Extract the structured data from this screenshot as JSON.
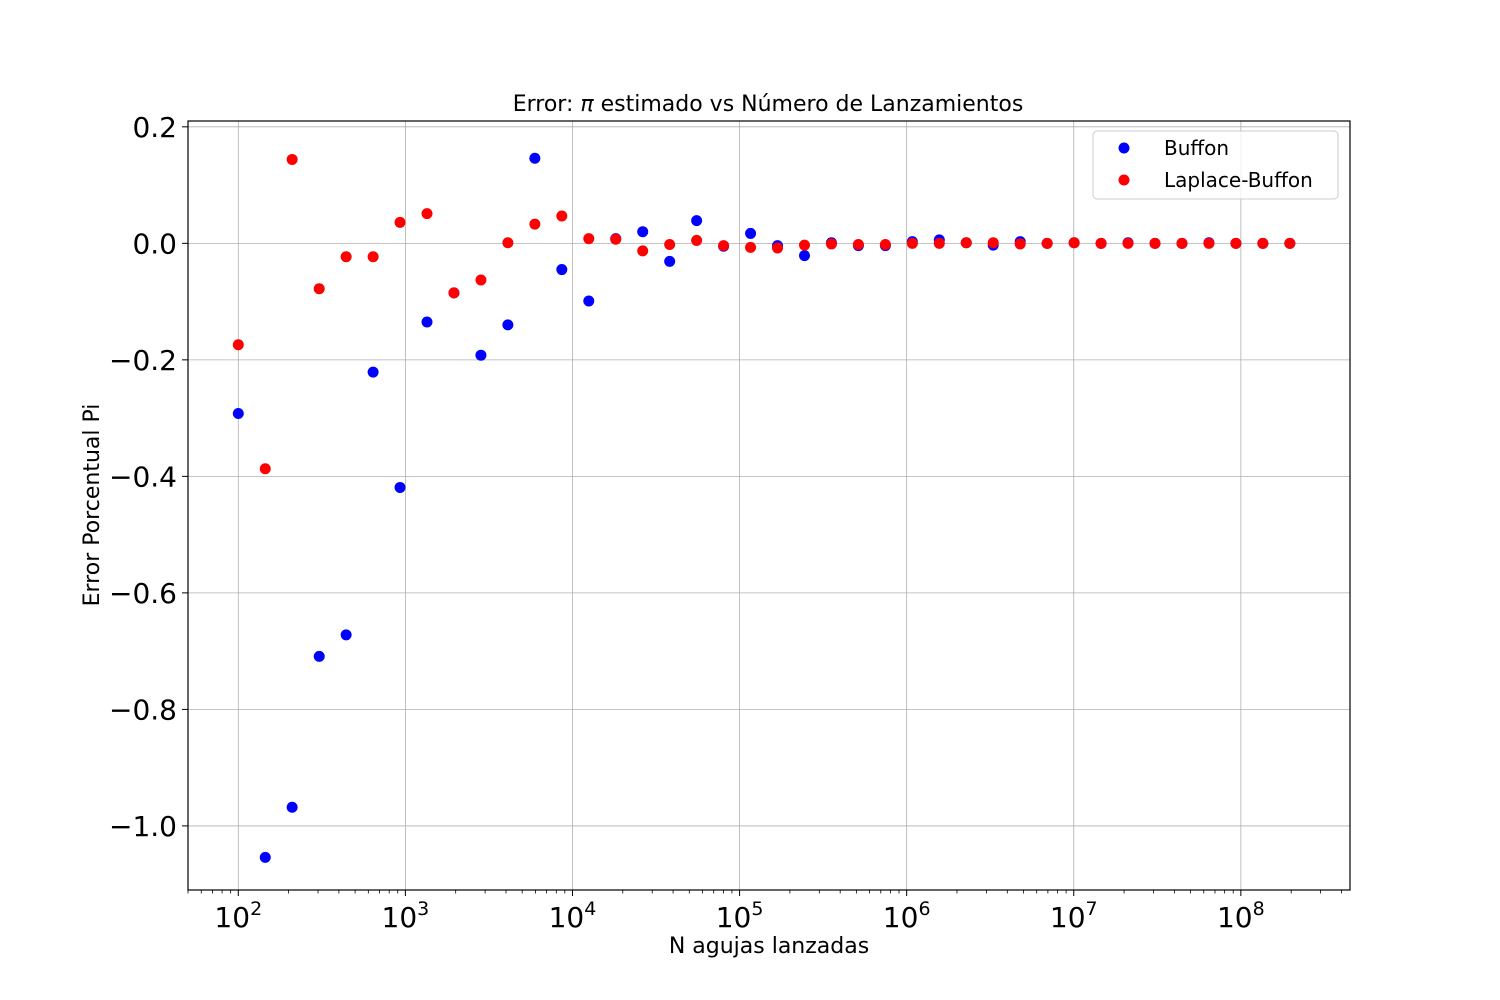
{
  "chart_data": {
    "type": "scatter",
    "title_prefix": "Error:  ",
    "title_pi": "π",
    "title_suffix": " estimado vs Número de Lanzamientos",
    "xlabel": "N agujas lanzadas",
    "ylabel": "Error Porcentual Pi",
    "x_scale": "log",
    "xlim": [
      50,
      450000000
    ],
    "ylim": [
      -1.11,
      0.21
    ],
    "grid": true,
    "legend_position": "top-right",
    "x_ticks": [
      {
        "value": 100,
        "base": "10",
        "exp": "2"
      },
      {
        "value": 1000,
        "base": "10",
        "exp": "3"
      },
      {
        "value": 10000,
        "base": "10",
        "exp": "4"
      },
      {
        "value": 100000,
        "base": "10",
        "exp": "5"
      },
      {
        "value": 1000000,
        "base": "10",
        "exp": "6"
      },
      {
        "value": 10000000,
        "base": "10",
        "exp": "7"
      },
      {
        "value": 100000000,
        "base": "10",
        "exp": "8"
      }
    ],
    "y_ticks": [
      {
        "value": 0.2,
        "label": "0.2"
      },
      {
        "value": 0.0,
        "label": "0.0"
      },
      {
        "value": -0.2,
        "label": "−0.2"
      },
      {
        "value": -0.4,
        "label": "−0.4"
      },
      {
        "value": -0.6,
        "label": "−0.6"
      },
      {
        "value": -0.8,
        "label": "−0.8"
      },
      {
        "value": -1.0,
        "label": "−1.0"
      }
    ],
    "x": [
      100,
      145,
      210,
      305,
      442,
      641,
      929,
      1347,
      1953,
      2832,
      4106,
      5954,
      8633,
      12518,
      18151,
      26319,
      38163,
      55336,
      80238,
      116345,
      168701,
      244617,
      354694,
      514306,
      745744,
      1081329,
      1567928,
      2273495,
      3296568,
      4780024,
      6931035,
      10050000,
      14572500,
      21130125,
      30638681,
      44426087,
      64417826,
      93405848,
      135438480,
      196385797
    ],
    "series": [
      {
        "name": "Buffon",
        "color": "#0000ff",
        "values": [
          -0.292,
          -1.054,
          -0.968,
          -0.709,
          -0.672,
          -0.221,
          -0.419,
          -0.135,
          -0.085,
          -0.192,
          -0.14,
          0.146,
          -0.045,
          -0.099,
          0.008,
          0.02,
          -0.031,
          0.039,
          -0.005,
          0.017,
          -0.004,
          -0.021,
          0.001,
          -0.004,
          -0.004,
          0.003,
          0.006,
          0.001,
          -0.003,
          0.003,
          0.0,
          0.001,
          0.0,
          0.001,
          0.0,
          0.0,
          0.001,
          0.0,
          0.0,
          0.0
        ]
      },
      {
        "name": "Laplace-Buffon",
        "color": "#ff0000",
        "values": [
          -0.174,
          -0.387,
          0.144,
          -0.078,
          -0.023,
          -0.023,
          0.036,
          0.051,
          -0.085,
          -0.063,
          0.001,
          0.033,
          0.047,
          0.008,
          0.007,
          -0.013,
          -0.002,
          0.005,
          -0.004,
          -0.007,
          -0.008,
          -0.003,
          -0.001,
          -0.002,
          -0.002,
          0.0,
          0.0,
          0.001,
          0.001,
          -0.001,
          0.0,
          0.001,
          0.0,
          0.0,
          0.0,
          0.0,
          0.0,
          0.0,
          0.0,
          0.0
        ]
      }
    ]
  }
}
